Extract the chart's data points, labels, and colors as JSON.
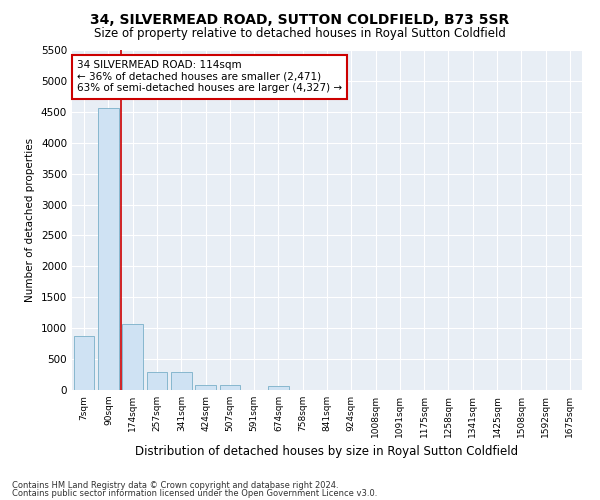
{
  "title": "34, SILVERMEAD ROAD, SUTTON COLDFIELD, B73 5SR",
  "subtitle": "Size of property relative to detached houses in Royal Sutton Coldfield",
  "xlabel": "Distribution of detached houses by size in Royal Sutton Coldfield",
  "ylabel": "Number of detached properties",
  "footnote1": "Contains HM Land Registry data © Crown copyright and database right 2024.",
  "footnote2": "Contains public sector information licensed under the Open Government Licence v3.0.",
  "annotation_title": "34 SILVERMEAD ROAD: 114sqm",
  "annotation_line1": "← 36% of detached houses are smaller (2,471)",
  "annotation_line2": "63% of semi-detached houses are larger (4,327) →",
  "bar_color": "#cfe2f3",
  "bar_edge_color": "#7aafc8",
  "vline_color": "#cc0000",
  "vline_x": 1.5,
  "annotation_box_color": "#cc0000",
  "categories": [
    "7sqm",
    "90sqm",
    "174sqm",
    "257sqm",
    "341sqm",
    "424sqm",
    "507sqm",
    "591sqm",
    "674sqm",
    "758sqm",
    "841sqm",
    "924sqm",
    "1008sqm",
    "1091sqm",
    "1175sqm",
    "1258sqm",
    "1341sqm",
    "1425sqm",
    "1508sqm",
    "1592sqm",
    "1675sqm"
  ],
  "values": [
    880,
    4560,
    1060,
    285,
    285,
    85,
    85,
    0,
    60,
    0,
    0,
    0,
    0,
    0,
    0,
    0,
    0,
    0,
    0,
    0,
    0
  ],
  "ylim": [
    0,
    5500
  ],
  "yticks": [
    0,
    500,
    1000,
    1500,
    2000,
    2500,
    3000,
    3500,
    4000,
    4500,
    5000,
    5500
  ],
  "bg_color": "#ffffff",
  "plot_bg_color": "#e8eef5"
}
